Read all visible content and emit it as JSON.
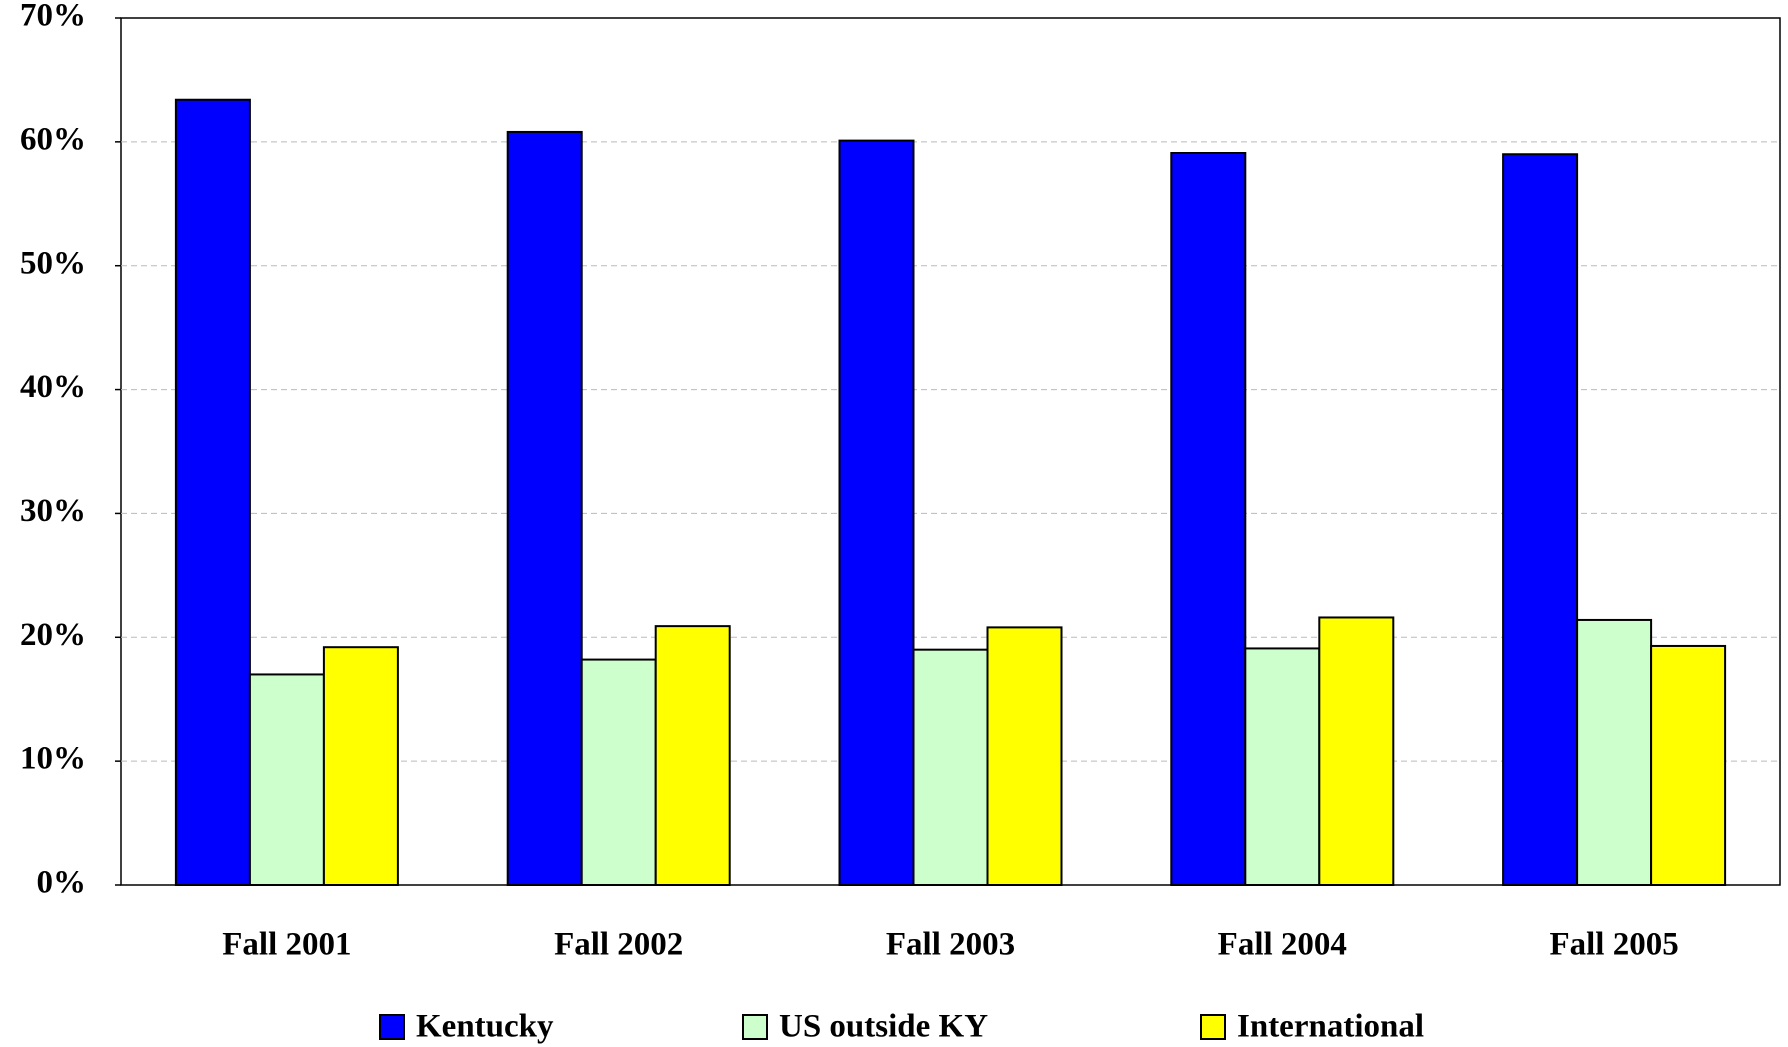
{
  "chart_data": {
    "type": "bar",
    "categories": [
      "Fall 2001",
      "Fall 2002",
      "Fall 2003",
      "Fall 2004",
      "Fall 2005"
    ],
    "series": [
      {
        "name": "Kentucky",
        "color": "#0000ff",
        "values": [
          63.4,
          60.8,
          60.1,
          59.1,
          59.0
        ]
      },
      {
        "name": "US outside KY",
        "color": "#ccffcc",
        "values": [
          17.0,
          18.2,
          19.0,
          19.1,
          21.4
        ]
      },
      {
        "name": "International",
        "color": "#ffff00",
        "values": [
          19.2,
          20.9,
          20.8,
          21.6,
          19.3
        ]
      }
    ],
    "ylim": [
      0,
      70
    ],
    "yticks": [
      {
        "value": 0,
        "label": "0%"
      },
      {
        "value": 10,
        "label": "10%"
      },
      {
        "value": 20,
        "label": "20%"
      },
      {
        "value": 30,
        "label": "30%"
      },
      {
        "value": 40,
        "label": "40%"
      },
      {
        "value": 50,
        "label": "50%"
      },
      {
        "value": 60,
        "label": "60%"
      },
      {
        "value": 70,
        "label": "70%"
      }
    ],
    "grid": true,
    "legend": "bottom"
  }
}
